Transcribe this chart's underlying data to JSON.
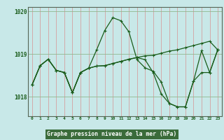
{
  "title": "Graphe pression niveau de la mer (hPa)",
  "bg_color": "#c8e8e8",
  "plot_bg": "#c8e8e8",
  "line_color": "#1a5c1a",
  "marker_color": "#1a5c1a",
  "vgrid_color": "#d4a0a0",
  "hgrid_color": "#90b890",
  "xlabel_bg": "#3a6b3a",
  "xlabel_fg": "#ffffff",
  "tick_color": "#1a5c1a",
  "spine_color": "#556655",
  "ylim": [
    1017.55,
    1020.1
  ],
  "yticks": [
    1018,
    1019,
    1020
  ],
  "xlim": [
    -0.5,
    23.5
  ],
  "xticks": [
    0,
    1,
    2,
    3,
    4,
    5,
    6,
    7,
    8,
    9,
    10,
    11,
    12,
    13,
    14,
    15,
    16,
    17,
    18,
    19,
    20,
    21,
    22,
    23
  ],
  "line1": [
    1018.28,
    1018.73,
    1018.88,
    1018.62,
    1018.57,
    1018.1,
    1018.57,
    1018.67,
    1019.1,
    1019.55,
    1019.85,
    1019.78,
    1019.52,
    1018.87,
    1018.68,
    1018.6,
    1018.35,
    1017.85,
    1017.77,
    1017.77,
    1018.37,
    1019.08,
    1018.57,
    1019.1
  ],
  "line2": [
    1018.28,
    1018.73,
    1018.88,
    1018.62,
    1018.57,
    1018.1,
    1018.57,
    1018.67,
    1018.72,
    1018.73,
    1018.78,
    1018.83,
    1018.88,
    1018.92,
    1018.96,
    1018.97,
    1019.02,
    1019.07,
    1019.1,
    1019.15,
    1019.2,
    1019.25,
    1019.3,
    1019.1
  ],
  "line3": [
    1018.28,
    1018.73,
    1018.88,
    1018.62,
    1018.57,
    1018.1,
    1018.57,
    1018.67,
    1018.72,
    1018.73,
    1018.78,
    1018.83,
    1018.88,
    1018.92,
    1018.87,
    1018.57,
    1018.07,
    1017.85,
    1017.77,
    1017.77,
    1018.37,
    1018.57,
    1018.57,
    1019.1
  ]
}
